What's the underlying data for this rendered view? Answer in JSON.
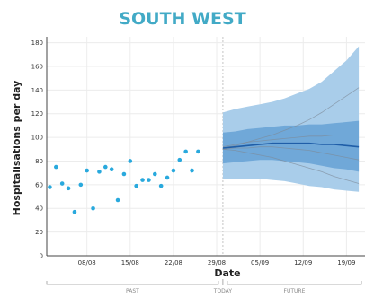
{
  "chart_data": {
    "type": "scatter",
    "title": "SOUTH WEST",
    "xlabel": "Date",
    "ylabel": "Hospitalisations per day",
    "ylim": [
      0,
      185
    ],
    "yticks": [
      0,
      20,
      40,
      60,
      80,
      100,
      120,
      140,
      160,
      180
    ],
    "x_tick_labels": [
      "08/08",
      "15/08",
      "22/08",
      "29/08",
      "05/09",
      "12/09",
      "19/09"
    ],
    "x_tick_days": [
      8,
      15,
      22,
      29,
      36,
      43,
      50
    ],
    "x_range_days": [
      1.5,
      53
    ],
    "today_day": 30,
    "periods": [
      "PAST",
      "TODAY",
      "FUTURE"
    ],
    "grid": true,
    "colors": {
      "title": "#42aac6",
      "points": "#29a9dd",
      "outer_band": "#a9cdea",
      "inner_band": "#5d9bd2",
      "median": "#1f5ea8",
      "trajectories": "#7d8a99"
    },
    "observed": {
      "name": "",
      "days": [
        2,
        3,
        4,
        5,
        6,
        7,
        8,
        9,
        10,
        11,
        12,
        13,
        14,
        15,
        16,
        17,
        18,
        19,
        20,
        21,
        22,
        23,
        24,
        25,
        26
      ],
      "values": [
        58,
        75,
        61,
        57,
        37,
        60,
        72,
        40,
        71,
        75,
        73,
        47,
        69,
        80,
        59,
        64,
        64,
        69,
        59,
        66,
        72,
        81,
        88,
        72,
        88
      ]
    },
    "projection": {
      "days": [
        30,
        32,
        34,
        36,
        38,
        40,
        42,
        44,
        46,
        48,
        50,
        52
      ],
      "median": [
        91,
        92,
        93,
        94,
        95,
        95,
        95,
        95,
        94,
        94,
        93,
        92
      ],
      "inner_lower": [
        78,
        79,
        80,
        81,
        81,
        80,
        79,
        78,
        76,
        74,
        73,
        71
      ],
      "inner_upper": [
        104,
        105,
        107,
        108,
        109,
        110,
        110,
        111,
        111,
        112,
        113,
        114
      ],
      "outer_lower": [
        65,
        65,
        65,
        65,
        64,
        63,
        61,
        59,
        58,
        56,
        55,
        54
      ],
      "outer_upper": [
        121,
        124,
        126,
        128,
        130,
        133,
        137,
        141,
        147,
        156,
        165,
        177
      ],
      "trajectories": [
        [
          91,
          93,
          96,
          99,
          102,
          106,
          110,
          115,
          121,
          128,
          135,
          142
        ],
        [
          90,
          89,
          87,
          85,
          83,
          80,
          77,
          74,
          71,
          67,
          64,
          61
        ],
        [
          92,
          94,
          96,
          97,
          98,
          99,
          100,
          101,
          101,
          102,
          102,
          102
        ],
        [
          90,
          91,
          91,
          92,
          92,
          91,
          90,
          89,
          87,
          85,
          83,
          81
        ]
      ]
    }
  }
}
